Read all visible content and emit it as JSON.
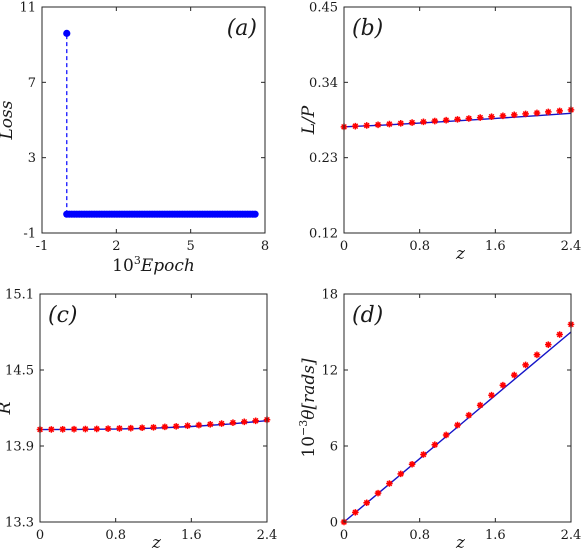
{
  "chart_data": [
    {
      "panel_label": "(a)",
      "type": "scatter",
      "xlabel": "10^3 Epoch",
      "ylabel": "Loss",
      "xlim": [
        -1,
        8
      ],
      "ylim": [
        -1,
        11
      ],
      "xticks": [
        -1,
        2,
        5,
        8
      ],
      "yticks": [
        -1,
        3,
        7,
        11
      ],
      "colors": {
        "points": "#0000ff"
      },
      "series": [
        {
          "style": "stem-points",
          "x": [
            0.0
          ],
          "y": [
            9.6
          ]
        },
        {
          "style": "points-line",
          "x_start": 0.0,
          "x_end": 7.6,
          "count": 76,
          "y": 0.0
        }
      ]
    },
    {
      "panel_label": "(b)",
      "type": "line",
      "xlabel": "z",
      "ylabel": "L/P",
      "xlim": [
        0,
        2.4
      ],
      "ylim": [
        0.12,
        0.45
      ],
      "xticks": [
        0,
        0.8,
        1.6,
        2.4
      ],
      "yticks": [
        0.12,
        0.23,
        0.34,
        0.45
      ],
      "colors": {
        "line": "#1515c8",
        "markers": "#ff0000"
      },
      "series": [
        {
          "style": "line",
          "x": [
            0,
            0.4,
            0.8,
            1.2,
            1.6,
            2.0,
            2.4
          ],
          "y": [
            0.275,
            0.2775,
            0.2805,
            0.2838,
            0.2873,
            0.291,
            0.2948
          ]
        },
        {
          "style": "markers",
          "x": [
            0,
            0.12,
            0.24,
            0.36,
            0.48,
            0.6,
            0.72,
            0.84,
            0.96,
            1.08,
            1.2,
            1.32,
            1.44,
            1.56,
            1.68,
            1.8,
            1.92,
            2.04,
            2.16,
            2.28,
            2.4
          ],
          "y": [
            0.275,
            0.276,
            0.277,
            0.278,
            0.279,
            0.2801,
            0.2812,
            0.2823,
            0.2835,
            0.2847,
            0.2859,
            0.2872,
            0.2885,
            0.2898,
            0.2911,
            0.2925,
            0.2939,
            0.2953,
            0.2968,
            0.2983,
            0.2998
          ]
        }
      ]
    },
    {
      "panel_label": "(c)",
      "type": "line",
      "xlabel": "z",
      "ylabel": "R",
      "xlim": [
        0,
        2.4
      ],
      "ylim": [
        13.3,
        15.1
      ],
      "xticks": [
        0,
        0.8,
        1.6,
        2.4
      ],
      "yticks": [
        13.3,
        13.9,
        14.5,
        15.1
      ],
      "colors": {
        "line": "#1515c8",
        "markers": "#ff0000"
      },
      "series": [
        {
          "style": "line",
          "x": [
            0,
            0.4,
            0.8,
            1.2,
            1.6,
            2.0,
            2.4
          ],
          "y": [
            14.03,
            14.031,
            14.034,
            14.041,
            14.054,
            14.073,
            14.1
          ]
        },
        {
          "style": "markers",
          "x": [
            0,
            0.12,
            0.24,
            0.36,
            0.48,
            0.6,
            0.72,
            0.84,
            0.96,
            1.08,
            1.2,
            1.32,
            1.44,
            1.56,
            1.68,
            1.8,
            1.92,
            2.04,
            2.16,
            2.28,
            2.4
          ],
          "y": [
            14.03,
            14.031,
            14.032,
            14.033,
            14.034,
            14.035,
            14.037,
            14.039,
            14.041,
            14.044,
            14.047,
            14.051,
            14.055,
            14.06,
            14.065,
            14.071,
            14.077,
            14.084,
            14.091,
            14.099,
            14.107
          ]
        }
      ]
    },
    {
      "panel_label": "(d)",
      "type": "line",
      "xlabel": "z",
      "ylabel": "10^{-3}θ[rads]",
      "xlim": [
        0,
        2.4
      ],
      "ylim": [
        0,
        18
      ],
      "xticks": [
        0,
        0.8,
        1.6,
        2.4
      ],
      "yticks": [
        0,
        6,
        12,
        18
      ],
      "colors": {
        "line": "#1515c8",
        "markers": "#ff0000"
      },
      "series": [
        {
          "style": "line",
          "x": [
            0,
            0.4,
            0.8,
            1.2,
            1.6,
            2.0,
            2.4
          ],
          "y": [
            0,
            2.5,
            5.0,
            7.5,
            10.0,
            12.5,
            15.0
          ]
        },
        {
          "style": "markers",
          "x": [
            0,
            0.12,
            0.24,
            0.36,
            0.48,
            0.6,
            0.72,
            0.84,
            0.96,
            1.08,
            1.2,
            1.32,
            1.44,
            1.56,
            1.68,
            1.8,
            1.92,
            2.04,
            2.16,
            2.28,
            2.4
          ],
          "y": [
            0,
            0.76,
            1.52,
            2.28,
            3.04,
            3.8,
            4.56,
            5.33,
            6.1,
            6.87,
            7.65,
            8.43,
            9.22,
            10.01,
            10.8,
            11.6,
            12.4,
            13.2,
            14.0,
            14.8,
            15.6
          ]
        }
      ]
    }
  ]
}
